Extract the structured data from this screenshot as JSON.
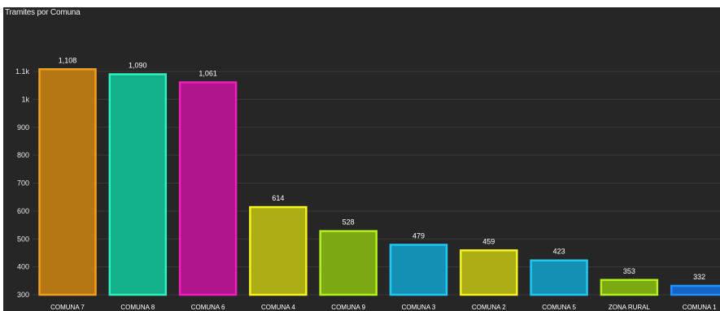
{
  "chart_data": {
    "type": "bar",
    "title": "Tramites por Comuna",
    "categories": [
      "COMUNA 7",
      "COMUNA 8",
      "COMUNA 6",
      "COMUNA 4",
      "COMUNA 9",
      "COMUNA 3",
      "COMUNA 2",
      "COMUNA 5",
      "ZONA RURAL",
      "COMUNA 1"
    ],
    "values": [
      1108,
      1090,
      1061,
      614,
      528,
      479,
      459,
      423,
      353,
      332
    ],
    "value_labels": [
      "1,108",
      "1,090",
      "1,061",
      "614",
      "528",
      "479",
      "459",
      "423",
      "353",
      "332"
    ],
    "colors": [
      "#b57614",
      "#14b08a",
      "#b0148c",
      "#acac14",
      "#7ca814",
      "#1490b4",
      "#acac14",
      "#1490b4",
      "#7ca814",
      "#1464c8"
    ],
    "border_colors": [
      "#f0a020",
      "#2ef0c0",
      "#f020c0",
      "#f4f420",
      "#b4f020",
      "#20c8f4",
      "#f4f420",
      "#20c8f4",
      "#b4f020",
      "#2090ff"
    ],
    "yticks": [
      300,
      400,
      500,
      600,
      700,
      800,
      900,
      1000,
      1100
    ],
    "ytick_labels": [
      "300",
      "400",
      "500",
      "600",
      "700",
      "800",
      "900",
      "1k",
      "1.1k"
    ],
    "ylim": [
      300,
      1175
    ],
    "xlabel": "",
    "ylabel": "",
    "grid": true,
    "legend": "none"
  }
}
